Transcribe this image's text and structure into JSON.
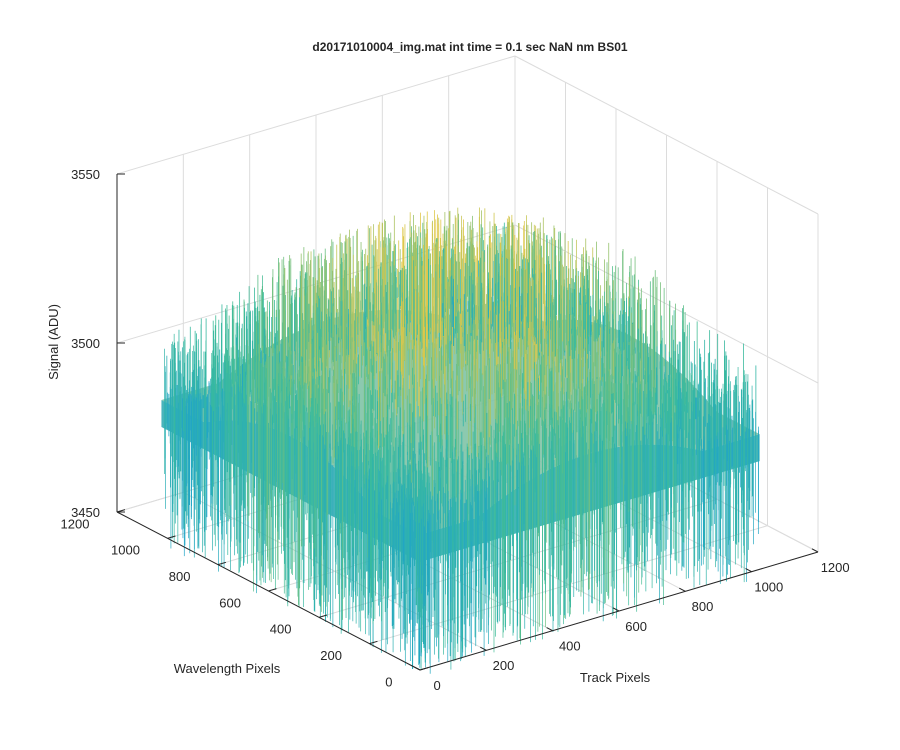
{
  "chart_data": {
    "type": "surface",
    "title": "d20171010004_img.mat int time = 0.1 sec  NaN nm BS01",
    "xlabel": "Track Pixels",
    "ylabel": "Wavelength Pixels",
    "zlabel": "Signal (ADU)",
    "xlim": [
      0,
      1200
    ],
    "ylim": [
      0,
      1200
    ],
    "zlim": [
      3450,
      3550
    ],
    "x_ticks": [
      "0",
      "200",
      "400",
      "600",
      "800",
      "1000",
      "1200"
    ],
    "y_ticks": [
      "0",
      "200",
      "400",
      "600",
      "800",
      "1000",
      "1200"
    ],
    "z_ticks": [
      "3450",
      "3500",
      "3550"
    ],
    "grid": true,
    "surface": {
      "x_range": [
        0,
        1024
      ],
      "y_range": [
        0,
        1024
      ],
      "z_base": 3490,
      "z_center_peak": 3520,
      "noise_amplitude": 25
    },
    "colors": {
      "axes": "#262626",
      "grid": "#dcdcdc",
      "low": "#1fa4c9",
      "mid": "#3cbc9b",
      "high": "#e0c84a"
    }
  }
}
